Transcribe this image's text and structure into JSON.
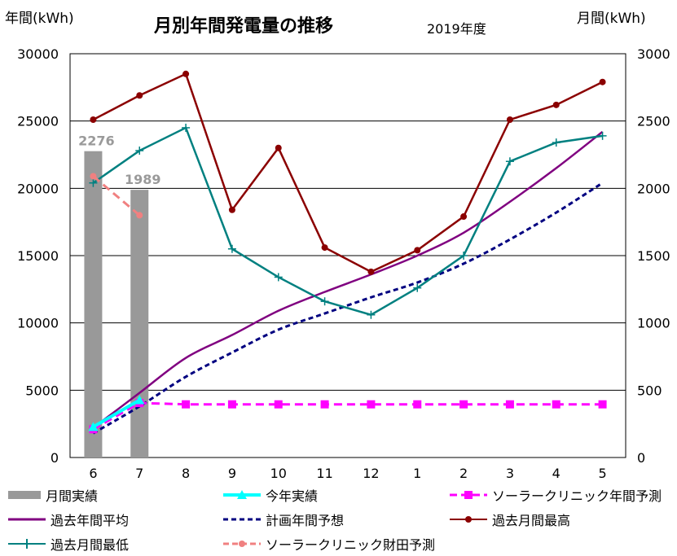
{
  "chart_data": {
    "type": "line",
    "title": "月別年間発電量の推移",
    "subtitle": "2019年度",
    "ylabel_left": "年間(kWh)",
    "ylabel_right": "月間(kWh)",
    "categories": [
      "6",
      "7",
      "8",
      "9",
      "10",
      "11",
      "12",
      "1",
      "2",
      "3",
      "4",
      "5"
    ],
    "ylim_left": [
      0,
      30000
    ],
    "ylim_right": [
      0,
      3000
    ],
    "yticks_left": [
      "0",
      "5000",
      "10000",
      "15000",
      "20000",
      "25000",
      "30000"
    ],
    "yticks_right": [
      "0",
      "500",
      "1000",
      "1500",
      "2000",
      "2500",
      "3000"
    ],
    "grid": true,
    "legend_position": "bottom",
    "bars": {
      "name": "月間実績",
      "axis": "right",
      "color": "#999999",
      "values": [
        2276,
        1989
      ],
      "data_labels": [
        "2276",
        "1989"
      ]
    },
    "series": [
      {
        "name": "今年実績",
        "axis": "left",
        "color": "#00ffff",
        "style": "solid-thick",
        "marker": "triangle",
        "values": [
          2276,
          4265,
          null,
          null,
          null,
          null,
          null,
          null,
          null,
          null,
          null,
          null
        ]
      },
      {
        "name": "ソーラークリニック年間予測",
        "axis": "left",
        "color": "#ff00ff",
        "style": "dashed-thick",
        "marker": "square",
        "values": [
          2100,
          4050,
          3950,
          3950,
          3950,
          3950,
          3950,
          3950,
          3950,
          3950,
          3950,
          3950
        ]
      },
      {
        "name": "過去年間平均",
        "axis": "left",
        "color": "#800080",
        "style": "solid",
        "marker": "none",
        "values": [
          2200,
          4800,
          7400,
          9100,
          10900,
          12300,
          13600,
          15000,
          16700,
          19000,
          21500,
          24200
        ]
      },
      {
        "name": "計画年間予想",
        "axis": "left",
        "color": "#000080",
        "style": "dashed",
        "marker": "none",
        "values": [
          1800,
          3800,
          6000,
          7800,
          9500,
          10700,
          11900,
          13000,
          14400,
          16200,
          18200,
          20400
        ]
      },
      {
        "name": "過去月間最高",
        "axis": "right",
        "color": "#8b0000",
        "style": "solid",
        "marker": "circle",
        "values": [
          2510,
          2690,
          2850,
          1840,
          2300,
          1560,
          1380,
          1540,
          1790,
          2510,
          2620,
          2790
        ]
      },
      {
        "name": "過去月間最低",
        "axis": "right",
        "color": "#008080",
        "style": "solid",
        "marker": "plus",
        "values": [
          2040,
          2280,
          2450,
          1550,
          1340,
          1160,
          1060,
          1260,
          1500,
          2200,
          2340,
          2390
        ]
      },
      {
        "name": "ソーラークリニック財田予測",
        "axis": "right",
        "color": "#f08080",
        "style": "dashed-thick",
        "marker": "circle",
        "values": [
          2090,
          1800,
          null,
          null,
          null,
          null,
          null,
          null,
          null,
          null,
          null,
          null
        ]
      }
    ]
  }
}
